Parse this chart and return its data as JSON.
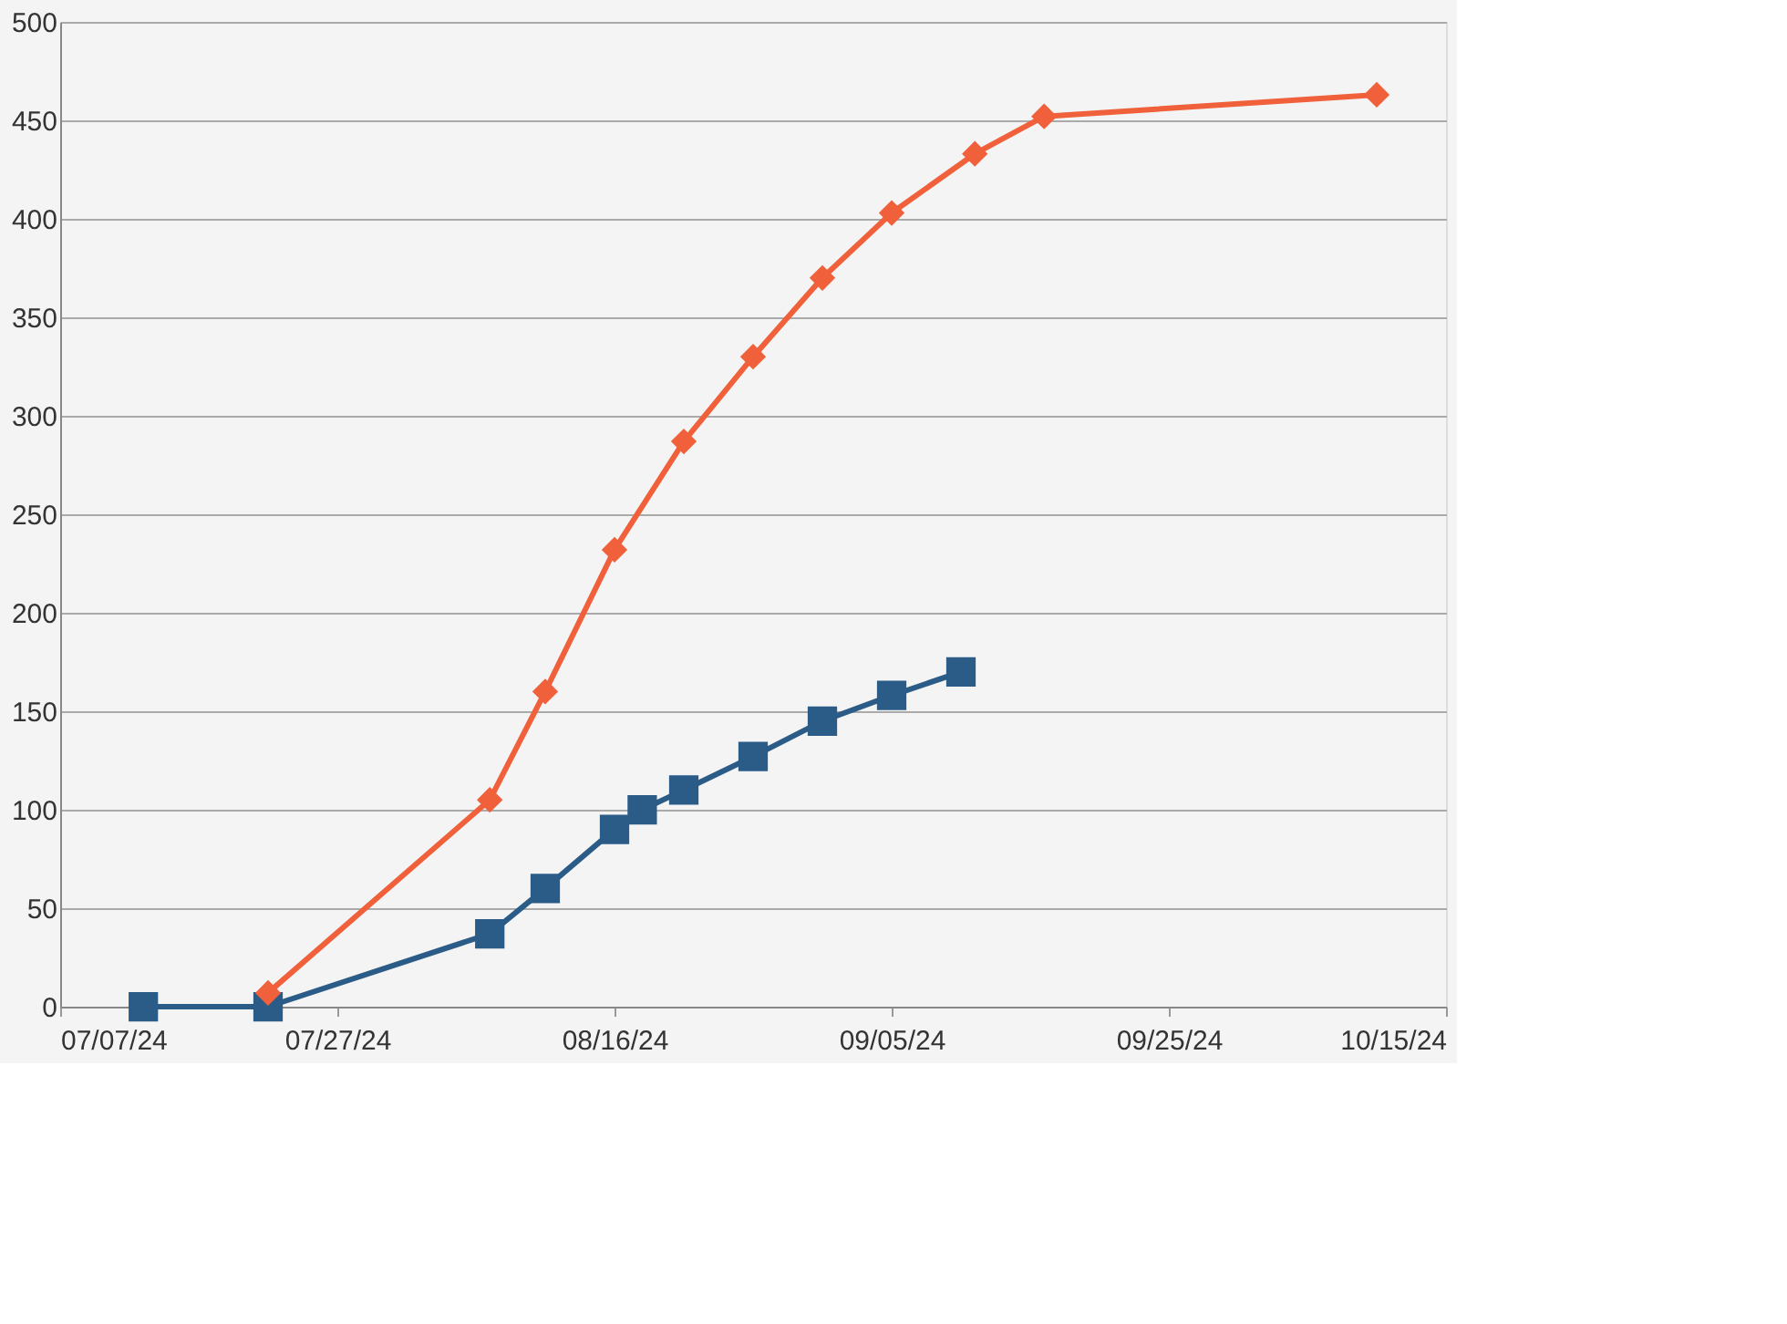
{
  "chart_data": {
    "type": "line",
    "xlim": [
      "2024-07-07",
      "2024-10-15"
    ],
    "xticks": [
      {
        "value": "2024-07-07",
        "label": "07/07/24"
      },
      {
        "value": "2024-07-27",
        "label": "07/27/24"
      },
      {
        "value": "2024-08-16",
        "label": "08/16/24"
      },
      {
        "value": "2024-09-05",
        "label": "09/05/24"
      },
      {
        "value": "2024-09-25",
        "label": "09/25/24"
      },
      {
        "value": "2024-10-15",
        "label": "10/15/24"
      }
    ],
    "ylim": [
      0,
      500
    ],
    "yticks": [
      0,
      50,
      100,
      150,
      200,
      250,
      300,
      350,
      400,
      450,
      500
    ],
    "grid": "y",
    "line_style": "solid",
    "series": [
      {
        "color": "#2b5b87",
        "marker": "square",
        "x": [
          "2024-07-13",
          "2024-07-22",
          "2024-08-07",
          "2024-08-11",
          "2024-08-16",
          "2024-08-18",
          "2024-08-21",
          "2024-08-26",
          "2024-08-31",
          "2024-09-05",
          "2024-09-10"
        ],
        "values": [
          0,
          0,
          37,
          60,
          90,
          100,
          110,
          127,
          145,
          158,
          170
        ]
      },
      {
        "color": "#f0603a",
        "marker": "diamond",
        "x": [
          "2024-07-22",
          "2024-08-07",
          "2024-08-11",
          "2024-08-16",
          "2024-08-21",
          "2024-08-26",
          "2024-08-31",
          "2024-09-05",
          "2024-09-11",
          "2024-09-16",
          "2024-10-10"
        ],
        "values": [
          7,
          105,
          160,
          232,
          287,
          330,
          370,
          403,
          433,
          452,
          463
        ]
      }
    ]
  }
}
